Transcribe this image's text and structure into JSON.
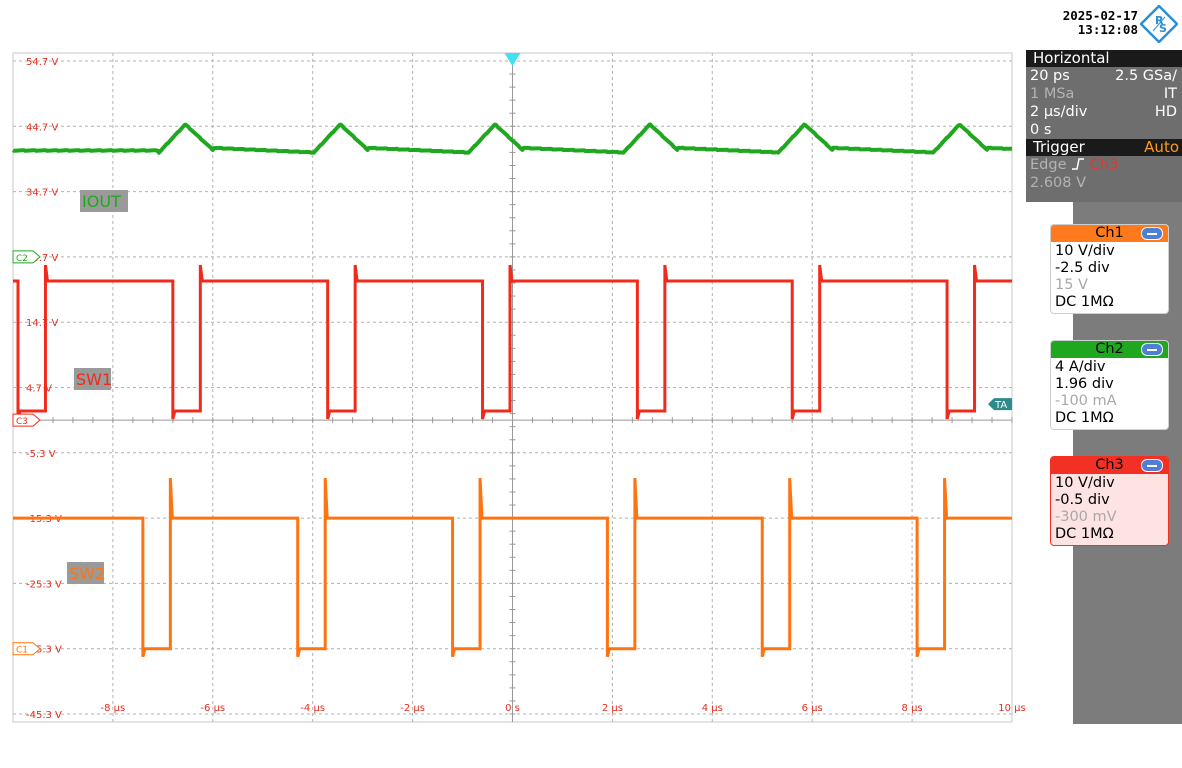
{
  "timestamp": {
    "date": "2025-02-17",
    "time": "13:12:08"
  },
  "horizontal": {
    "header": "Horizontal",
    "time_scale": "20 ps",
    "sample_rate": "2.5 GSa/",
    "record_length": "1 MSa",
    "mode": "IT",
    "time_div": "2 µs/div",
    "resolution": "HD",
    "position": "0 s"
  },
  "trigger": {
    "header": "Trigger",
    "mode": "Auto",
    "type": "Edge",
    "source": "Ch3",
    "level": "2.608 V"
  },
  "channels": [
    {
      "title": "Ch1",
      "scale": "10 V/div",
      "position": "-2.5 div",
      "offset": "15 V",
      "coupling": "DC 1MΩ",
      "header_color": "#ff7a1c",
      "body_color": "#ffffff",
      "border_color": "#cfcfcf"
    },
    {
      "title": "Ch2",
      "scale": "4 A/div",
      "position": "1.96 div",
      "offset": "-100 mA",
      "coupling": "DC 1MΩ",
      "header_color": "#1fa81f",
      "body_color": "#ffffff",
      "border_color": "#cfcfcf"
    },
    {
      "title": "Ch3",
      "scale": "10 V/div",
      "position": "-0.5 div",
      "offset": "-300 mV",
      "coupling": "DC 1MΩ",
      "header_color": "#f23024",
      "body_color": "#fde3e1",
      "border_color": "#f23024"
    }
  ],
  "y_axis_labels": [
    "54.7 V",
    "44.7 V",
    "34.7 V",
    "24.7 V",
    "14.7 V",
    "4.7 V",
    "-5.3 V",
    "-15.3 V",
    "-25.3 V",
    "-35.3 V",
    "-45.3 V"
  ],
  "x_axis_labels": [
    "-8 µs",
    "-6 µs",
    "-4 µs",
    "-2 µs",
    "0 s",
    "2 µs",
    "4 µs",
    "6 µs",
    "8 µs",
    "10 µs"
  ],
  "ref_markers": {
    "c2": "C2",
    "c3": "C3",
    "c1": "C1",
    "ta": "TA"
  },
  "trace_labels": {
    "iout": "IOUT",
    "sw1": "SW1",
    "sw2": "SW2"
  },
  "colors": {
    "iout": "#1fa81f",
    "sw1": "#f02b1b",
    "sw2": "#ff7410",
    "grid": "#b0b0b0",
    "ta": "#2e8b8b",
    "trigger_arrow": "#3fe0f0"
  },
  "chart_data": {
    "type": "line",
    "x_range_us": [
      -10,
      10
    ],
    "y_range_v": [
      -45.3,
      54.7
    ],
    "grid": true,
    "period_us": 3.1,
    "series": [
      {
        "name": "IOUT",
        "min_v": 40.5,
        "max_v": 45.0
      },
      {
        "name": "SW1",
        "high_v": 21.0,
        "low_v": 1.1
      },
      {
        "name": "SW2",
        "high_v": -15.3,
        "low_v": -35.3
      }
    ]
  }
}
